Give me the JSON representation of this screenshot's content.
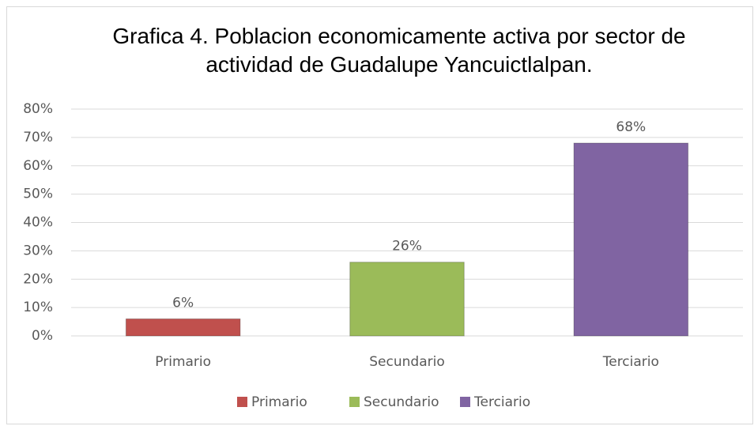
{
  "chart_data": {
    "type": "bar",
    "title": "Grafica 4. Poblacion economicamente activa por sector de actividad de Guadalupe Yancuictlalpan.",
    "categories": [
      "Primario",
      "Secundario",
      "Terciario"
    ],
    "values": [
      6,
      26,
      68
    ],
    "value_labels": [
      "6%",
      "26%",
      "68%"
    ],
    "colors": [
      "#c0504d",
      "#9bbb59",
      "#8064a2"
    ],
    "ylim": [
      0,
      80
    ],
    "yticks": [
      {
        "value": 0,
        "label": "0%"
      },
      {
        "value": 10,
        "label": "10%"
      },
      {
        "value": 20,
        "label": "20%"
      },
      {
        "value": 30,
        "label": "30%"
      },
      {
        "value": 40,
        "label": "40%"
      },
      {
        "value": 50,
        "label": "50%"
      },
      {
        "value": 60,
        "label": "60%"
      },
      {
        "value": 70,
        "label": "70%"
      },
      {
        "value": 80,
        "label": "80%"
      }
    ],
    "grid": true,
    "legend": "bottom"
  }
}
